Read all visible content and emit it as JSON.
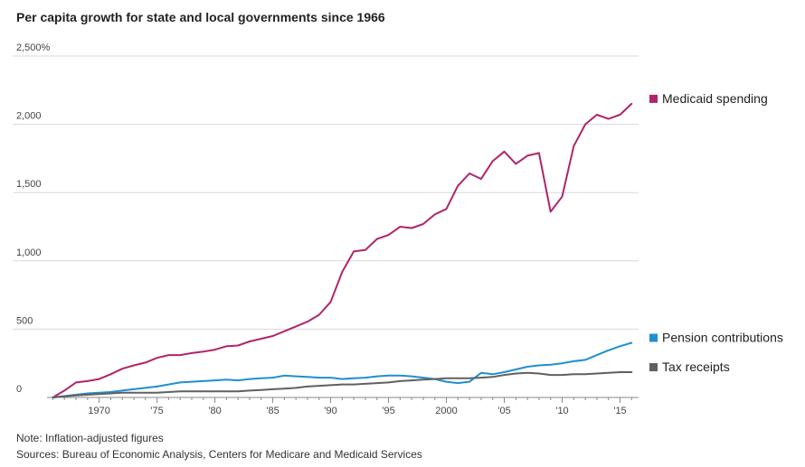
{
  "title": "Per capita growth for state and local governments since 1966",
  "note": "Note: Inflation-adjusted figures",
  "sources": "Sources: Bureau of Economic Analysis, Centers for Medicare and Medicaid Services",
  "chart_data": {
    "type": "line",
    "title": "Per capita growth for state and local governments since 1966",
    "xlabel": "",
    "ylabel": "",
    "x": [
      1966,
      1967,
      1968,
      1969,
      1970,
      1971,
      1972,
      1973,
      1974,
      1975,
      1976,
      1977,
      1978,
      1979,
      1980,
      1981,
      1982,
      1983,
      1984,
      1985,
      1986,
      1987,
      1988,
      1989,
      1990,
      1991,
      1992,
      1993,
      1994,
      1995,
      1996,
      1997,
      1998,
      1999,
      2000,
      2001,
      2002,
      2003,
      2004,
      2005,
      2006,
      2007,
      2008,
      2009,
      2010,
      2011,
      2012,
      2013,
      2014,
      2015,
      2016
    ],
    "xlim": [
      1965.5,
      2016.6
    ],
    "ylim": [
      0,
      2500
    ],
    "x_ticks": [
      1970,
      1975,
      1980,
      1985,
      1990,
      1995,
      2000,
      2005,
      2010,
      2015
    ],
    "x_tick_labels": [
      "1970",
      "'75",
      "'80",
      "'85",
      "'90",
      "'95",
      "2000",
      "'05",
      "'10",
      "'15"
    ],
    "y_ticks": [
      0,
      500,
      1000,
      1500,
      2000,
      2500
    ],
    "y_tick_labels": [
      "0",
      "500",
      "1,000",
      "1,500",
      "2,000",
      "2,500%"
    ],
    "grid": true,
    "legend_placement": "right, at line ends",
    "series": [
      {
        "name": "Medicaid spending",
        "color": "#b0246b",
        "values": [
          0,
          50,
          110,
          120,
          135,
          170,
          210,
          235,
          255,
          290,
          310,
          310,
          325,
          335,
          350,
          375,
          380,
          410,
          430,
          450,
          485,
          520,
          555,
          605,
          700,
          920,
          1070,
          1080,
          1160,
          1190,
          1250,
          1240,
          1270,
          1340,
          1380,
          1550,
          1640,
          1600,
          1730,
          1800,
          1710,
          1770,
          1790,
          1360,
          1470,
          1840,
          2000,
          2070,
          2040,
          2070,
          2150
        ]
      },
      {
        "name": "Pension contributions",
        "color": "#1f8fd1",
        "values": [
          0,
          10,
          20,
          30,
          35,
          40,
          50,
          60,
          70,
          80,
          95,
          110,
          115,
          120,
          125,
          130,
          125,
          135,
          140,
          145,
          160,
          155,
          150,
          145,
          145,
          135,
          140,
          145,
          155,
          160,
          160,
          155,
          145,
          135,
          115,
          105,
          115,
          180,
          170,
          185,
          205,
          225,
          235,
          240,
          250,
          265,
          275,
          310,
          345,
          375,
          400
        ]
      },
      {
        "name": "Tax receipts",
        "color": "#606060",
        "values": [
          0,
          8,
          15,
          20,
          25,
          30,
          35,
          35,
          35,
          35,
          40,
          45,
          45,
          45,
          45,
          45,
          45,
          50,
          55,
          60,
          65,
          70,
          80,
          85,
          90,
          95,
          95,
          100,
          105,
          110,
          120,
          125,
          130,
          135,
          140,
          140,
          140,
          145,
          150,
          165,
          175,
          180,
          175,
          165,
          165,
          170,
          170,
          175,
          180,
          185,
          185
        ]
      }
    ]
  }
}
